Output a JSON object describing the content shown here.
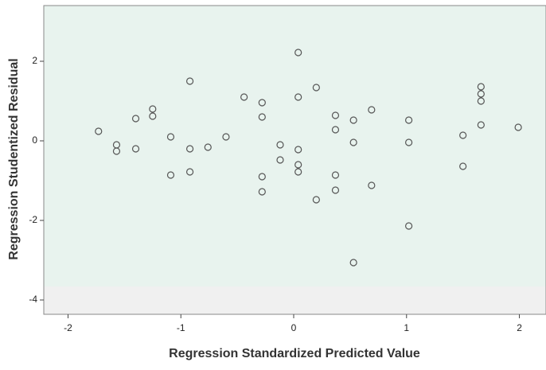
{
  "chart_data": {
    "type": "scatter",
    "xlabel": "Regression Standardized Predicted Value",
    "ylabel": "Regression Studentized Residual",
    "x": [
      -1.73,
      -1.57,
      -1.57,
      -1.4,
      -1.4,
      -1.25,
      -1.25,
      -1.09,
      -1.09,
      -0.92,
      -0.92,
      -0.92,
      -0.76,
      -0.6,
      -0.44,
      -0.28,
      -0.28,
      -0.28,
      -0.28,
      -0.12,
      -0.12,
      0.04,
      0.04,
      0.04,
      0.04,
      0.04,
      0.2,
      0.2,
      0.37,
      0.37,
      0.37,
      0.37,
      0.53,
      0.53,
      0.53,
      0.69,
      0.69,
      1.02,
      1.02,
      1.02,
      1.5,
      1.5,
      1.66,
      1.66,
      1.66,
      1.66,
      1.99
    ],
    "y": [
      0.24,
      -0.1,
      -0.26,
      0.56,
      -0.2,
      0.8,
      0.62,
      0.1,
      -0.86,
      1.5,
      -0.2,
      -0.78,
      -0.16,
      0.1,
      1.1,
      0.96,
      0.6,
      -0.9,
      -1.28,
      -0.1,
      -0.48,
      2.22,
      1.1,
      -0.22,
      -0.6,
      -0.78,
      1.34,
      -1.48,
      0.64,
      0.28,
      -0.86,
      -1.24,
      0.52,
      -0.04,
      -3.06,
      0.78,
      -1.12,
      0.52,
      -0.04,
      -2.14,
      0.14,
      -0.64,
      1.36,
      1.18,
      1.0,
      0.4,
      0.34
    ],
    "color": "#555555",
    "xlim": [
      -2.215,
      2.236
    ],
    "ylim": [
      -4.36,
      3.4
    ],
    "xticks": [
      -2,
      -1,
      0,
      1,
      2
    ],
    "yticks": [
      2,
      0,
      -2,
      -4
    ]
  }
}
